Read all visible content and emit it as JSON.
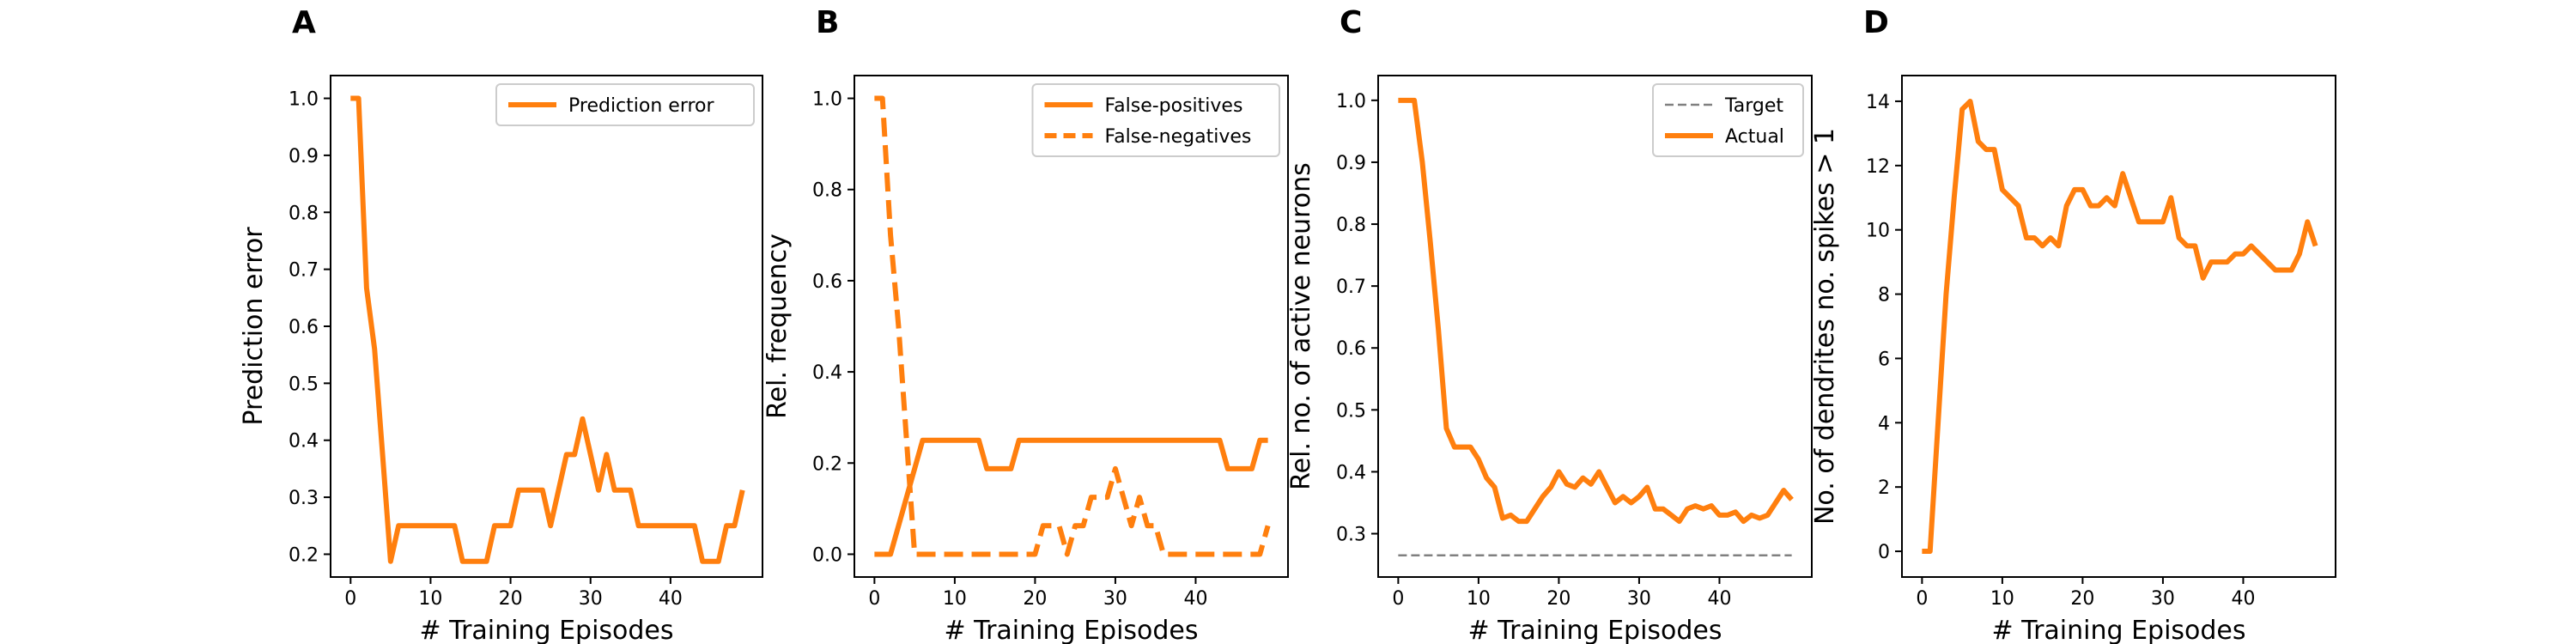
{
  "colors": {
    "series": "#ff7f0e",
    "target": "#808080",
    "axes": "#000000",
    "legend_border": "#cccccc"
  },
  "chart_data": [
    {
      "type": "line",
      "panel_label": "A",
      "xlabel": "# Training Episodes",
      "ylabel": "Prediction error",
      "xlim": [
        -2.5,
        51.5
      ],
      "ylim": [
        0.16,
        1.04
      ],
      "xticks": [
        0,
        10,
        20,
        30,
        40
      ],
      "yticks": [
        0.2,
        0.3,
        0.4,
        0.5,
        0.6,
        0.7,
        0.8,
        0.9,
        1.0
      ],
      "ytick_labels": [
        "0.2",
        "0.3",
        "0.4",
        "0.5",
        "0.6",
        "0.7",
        "0.8",
        "0.9",
        "1.0"
      ],
      "legend_position": "top-right",
      "grid": false,
      "series": [
        {
          "name": "Prediction error",
          "style": "solid",
          "values": [
            1.0,
            1.0,
            0.667,
            0.56,
            0.375,
            0.1875,
            0.25,
            0.25,
            0.25,
            0.25,
            0.25,
            0.25,
            0.25,
            0.25,
            0.1875,
            0.1875,
            0.1875,
            0.1875,
            0.25,
            0.25,
            0.25,
            0.3125,
            0.3125,
            0.3125,
            0.3125,
            0.25,
            0.3125,
            0.375,
            0.375,
            0.4375,
            0.375,
            0.3125,
            0.375,
            0.3125,
            0.3125,
            0.3125,
            0.25,
            0.25,
            0.25,
            0.25,
            0.25,
            0.25,
            0.25,
            0.25,
            0.1875,
            0.1875,
            0.1875,
            0.25,
            0.25,
            0.3125
          ]
        }
      ]
    },
    {
      "type": "line",
      "panel_label": "B",
      "xlabel": "# Training Episodes",
      "ylabel": "Rel. frequency",
      "xlim": [
        -2.5,
        51.5
      ],
      "ylim": [
        -0.05,
        1.05
      ],
      "xticks": [
        0,
        10,
        20,
        30,
        40
      ],
      "yticks": [
        0.0,
        0.2,
        0.4,
        0.6,
        0.8,
        1.0
      ],
      "ytick_labels": [
        "0.0",
        "0.2",
        "0.4",
        "0.6",
        "0.8",
        "1.0"
      ],
      "legend_position": "top-right",
      "grid": false,
      "series": [
        {
          "name": "False-positives",
          "style": "solid",
          "values": [
            0.0,
            0.0,
            0.0,
            0.0625,
            0.125,
            0.1875,
            0.25,
            0.25,
            0.25,
            0.25,
            0.25,
            0.25,
            0.25,
            0.25,
            0.1875,
            0.1875,
            0.1875,
            0.1875,
            0.25,
            0.25,
            0.25,
            0.25,
            0.25,
            0.25,
            0.25,
            0.25,
            0.25,
            0.25,
            0.25,
            0.25,
            0.25,
            0.25,
            0.25,
            0.25,
            0.25,
            0.25,
            0.25,
            0.25,
            0.25,
            0.25,
            0.25,
            0.25,
            0.25,
            0.25,
            0.1875,
            0.1875,
            0.1875,
            0.1875,
            0.25,
            0.25
          ]
        },
        {
          "name": "False-negatives",
          "style": "dashed",
          "values": [
            1.0,
            1.0,
            0.7,
            0.5,
            0.25,
            0.0,
            0.0,
            0.0,
            0.0,
            0.0,
            0.0,
            0.0,
            0.0,
            0.0,
            0.0,
            0.0,
            0.0,
            0.0,
            0.0,
            0.0,
            0.0,
            0.0625,
            0.0625,
            0.0625,
            0.0,
            0.0625,
            0.0625,
            0.125,
            0.125,
            0.125,
            0.1875,
            0.125,
            0.0625,
            0.125,
            0.0625,
            0.0625,
            0.0,
            0.0,
            0.0,
            0.0,
            0.0,
            0.0,
            0.0,
            0.0,
            0.0,
            0.0,
            0.0,
            0.0,
            0.0,
            0.0625
          ]
        }
      ]
    },
    {
      "type": "line",
      "panel_label": "C",
      "xlabel": "# Training Episodes",
      "ylabel": "Rel. no. of active neurons",
      "xlim": [
        -2.5,
        51.5
      ],
      "ylim": [
        0.23,
        1.04
      ],
      "xticks": [
        0,
        10,
        20,
        30,
        40
      ],
      "yticks": [
        0.3,
        0.4,
        0.5,
        0.6,
        0.7,
        0.8,
        0.9,
        1.0
      ],
      "ytick_labels": [
        "0.3",
        "0.4",
        "0.5",
        "0.6",
        "0.7",
        "0.8",
        "0.9",
        "1.0"
      ],
      "legend_position": "top-right",
      "grid": false,
      "series": [
        {
          "name": "Target",
          "style": "dashed-thin",
          "values": [
            0.265,
            0.265
          ],
          "x": [
            0,
            49
          ]
        },
        {
          "name": "Actual",
          "style": "solid",
          "values": [
            1.0,
            1.0,
            1.0,
            0.9,
            0.77,
            0.63,
            0.47,
            0.44,
            0.44,
            0.44,
            0.42,
            0.39,
            0.375,
            0.325,
            0.33,
            0.32,
            0.32,
            0.34,
            0.36,
            0.375,
            0.4,
            0.38,
            0.375,
            0.39,
            0.38,
            0.4,
            0.375,
            0.35,
            0.36,
            0.35,
            0.36,
            0.375,
            0.34,
            0.34,
            0.33,
            0.32,
            0.34,
            0.345,
            0.34,
            0.345,
            0.33,
            0.33,
            0.335,
            0.32,
            0.33,
            0.325,
            0.33,
            0.35,
            0.37,
            0.355
          ]
        }
      ]
    },
    {
      "type": "line",
      "panel_label": "D",
      "xlabel": "# Training Episodes",
      "ylabel": "No. of dendrites no. spikes > 1",
      "xlim": [
        -2.5,
        51.5
      ],
      "ylim": [
        -0.8,
        14.8
      ],
      "xticks": [
        0,
        10,
        20,
        30,
        40
      ],
      "yticks": [
        0,
        2,
        4,
        6,
        8,
        10,
        12,
        14
      ],
      "ytick_labels": [
        "0",
        "2",
        "4",
        "6",
        "8",
        "10",
        "12",
        "14"
      ],
      "legend_position": "none",
      "grid": false,
      "series": [
        {
          "name": "",
          "style": "solid",
          "values": [
            0.0,
            0.0,
            4.0,
            8.0,
            11.0,
            13.75,
            14.0,
            12.75,
            12.5,
            12.5,
            11.25,
            11.0,
            10.75,
            9.75,
            9.75,
            9.5,
            9.75,
            9.5,
            10.75,
            11.25,
            11.25,
            10.75,
            10.75,
            11.0,
            10.75,
            11.75,
            11.0,
            10.25,
            10.25,
            10.25,
            10.25,
            11.0,
            9.75,
            9.5,
            9.5,
            8.5,
            9.0,
            9.0,
            9.0,
            9.25,
            9.25,
            9.5,
            9.25,
            9.0,
            8.75,
            8.75,
            8.75,
            9.25,
            10.25,
            9.5
          ]
        }
      ]
    }
  ]
}
